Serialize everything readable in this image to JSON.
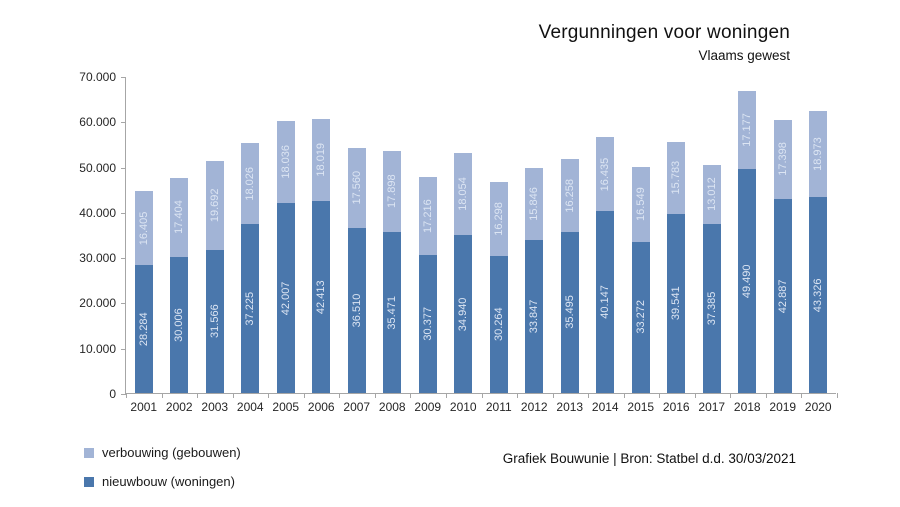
{
  "header": {
    "title": "Vergunningen voor woningen",
    "subtitle": "Vlaams gewest"
  },
  "footer": {
    "source": "Grafiek Bouwunie | Bron: Statbel d.d. 30/03/2021"
  },
  "legend": [
    {
      "label": "verbouwing (gebouwen)",
      "color": "#a2b4d6"
    },
    {
      "label": "nieuwbouw (woningen)",
      "color": "#4a77ac"
    }
  ],
  "chart_data": {
    "type": "bar",
    "stacked": true,
    "title": "Vergunningen voor woningen",
    "subtitle": "Vlaams gewest",
    "categories": [
      "2001",
      "2002",
      "2003",
      "2004",
      "2005",
      "2006",
      "2007",
      "2008",
      "2009",
      "2010",
      "2011",
      "2012",
      "2013",
      "2014",
      "2015",
      "2016",
      "2017",
      "2018",
      "2019",
      "2020"
    ],
    "series": [
      {
        "name": "nieuwbouw (woningen)",
        "color": "#4a77ac",
        "values": [
          28284,
          30006,
          31566,
          37225,
          42007,
          42413,
          36510,
          35471,
          30377,
          34940,
          30264,
          33847,
          35495,
          40147,
          33272,
          39541,
          37385,
          49490,
          42887,
          43326
        ]
      },
      {
        "name": "verbouwing (gebouwen)",
        "color": "#a2b4d6",
        "values": [
          16405,
          17404,
          19692,
          18026,
          18036,
          18019,
          17560,
          17898,
          17216,
          18054,
          16298,
          15846,
          16258,
          16435,
          16549,
          15783,
          13012,
          17177,
          17398,
          18973
        ]
      }
    ],
    "ylim": [
      0,
      70000
    ],
    "ytick_step": 10000,
    "ytick_labels": [
      "0",
      "10.000",
      "20.000",
      "30.000",
      "40.000",
      "50.000",
      "60.000",
      "70.000"
    ],
    "grid": false,
    "legend_position": "bottom-left",
    "value_label_style": "rotated 90deg, light text inside segments, '.' thousands separator",
    "value_label_color": "#dce5f3",
    "axis_color": "#a6a6a6"
  }
}
